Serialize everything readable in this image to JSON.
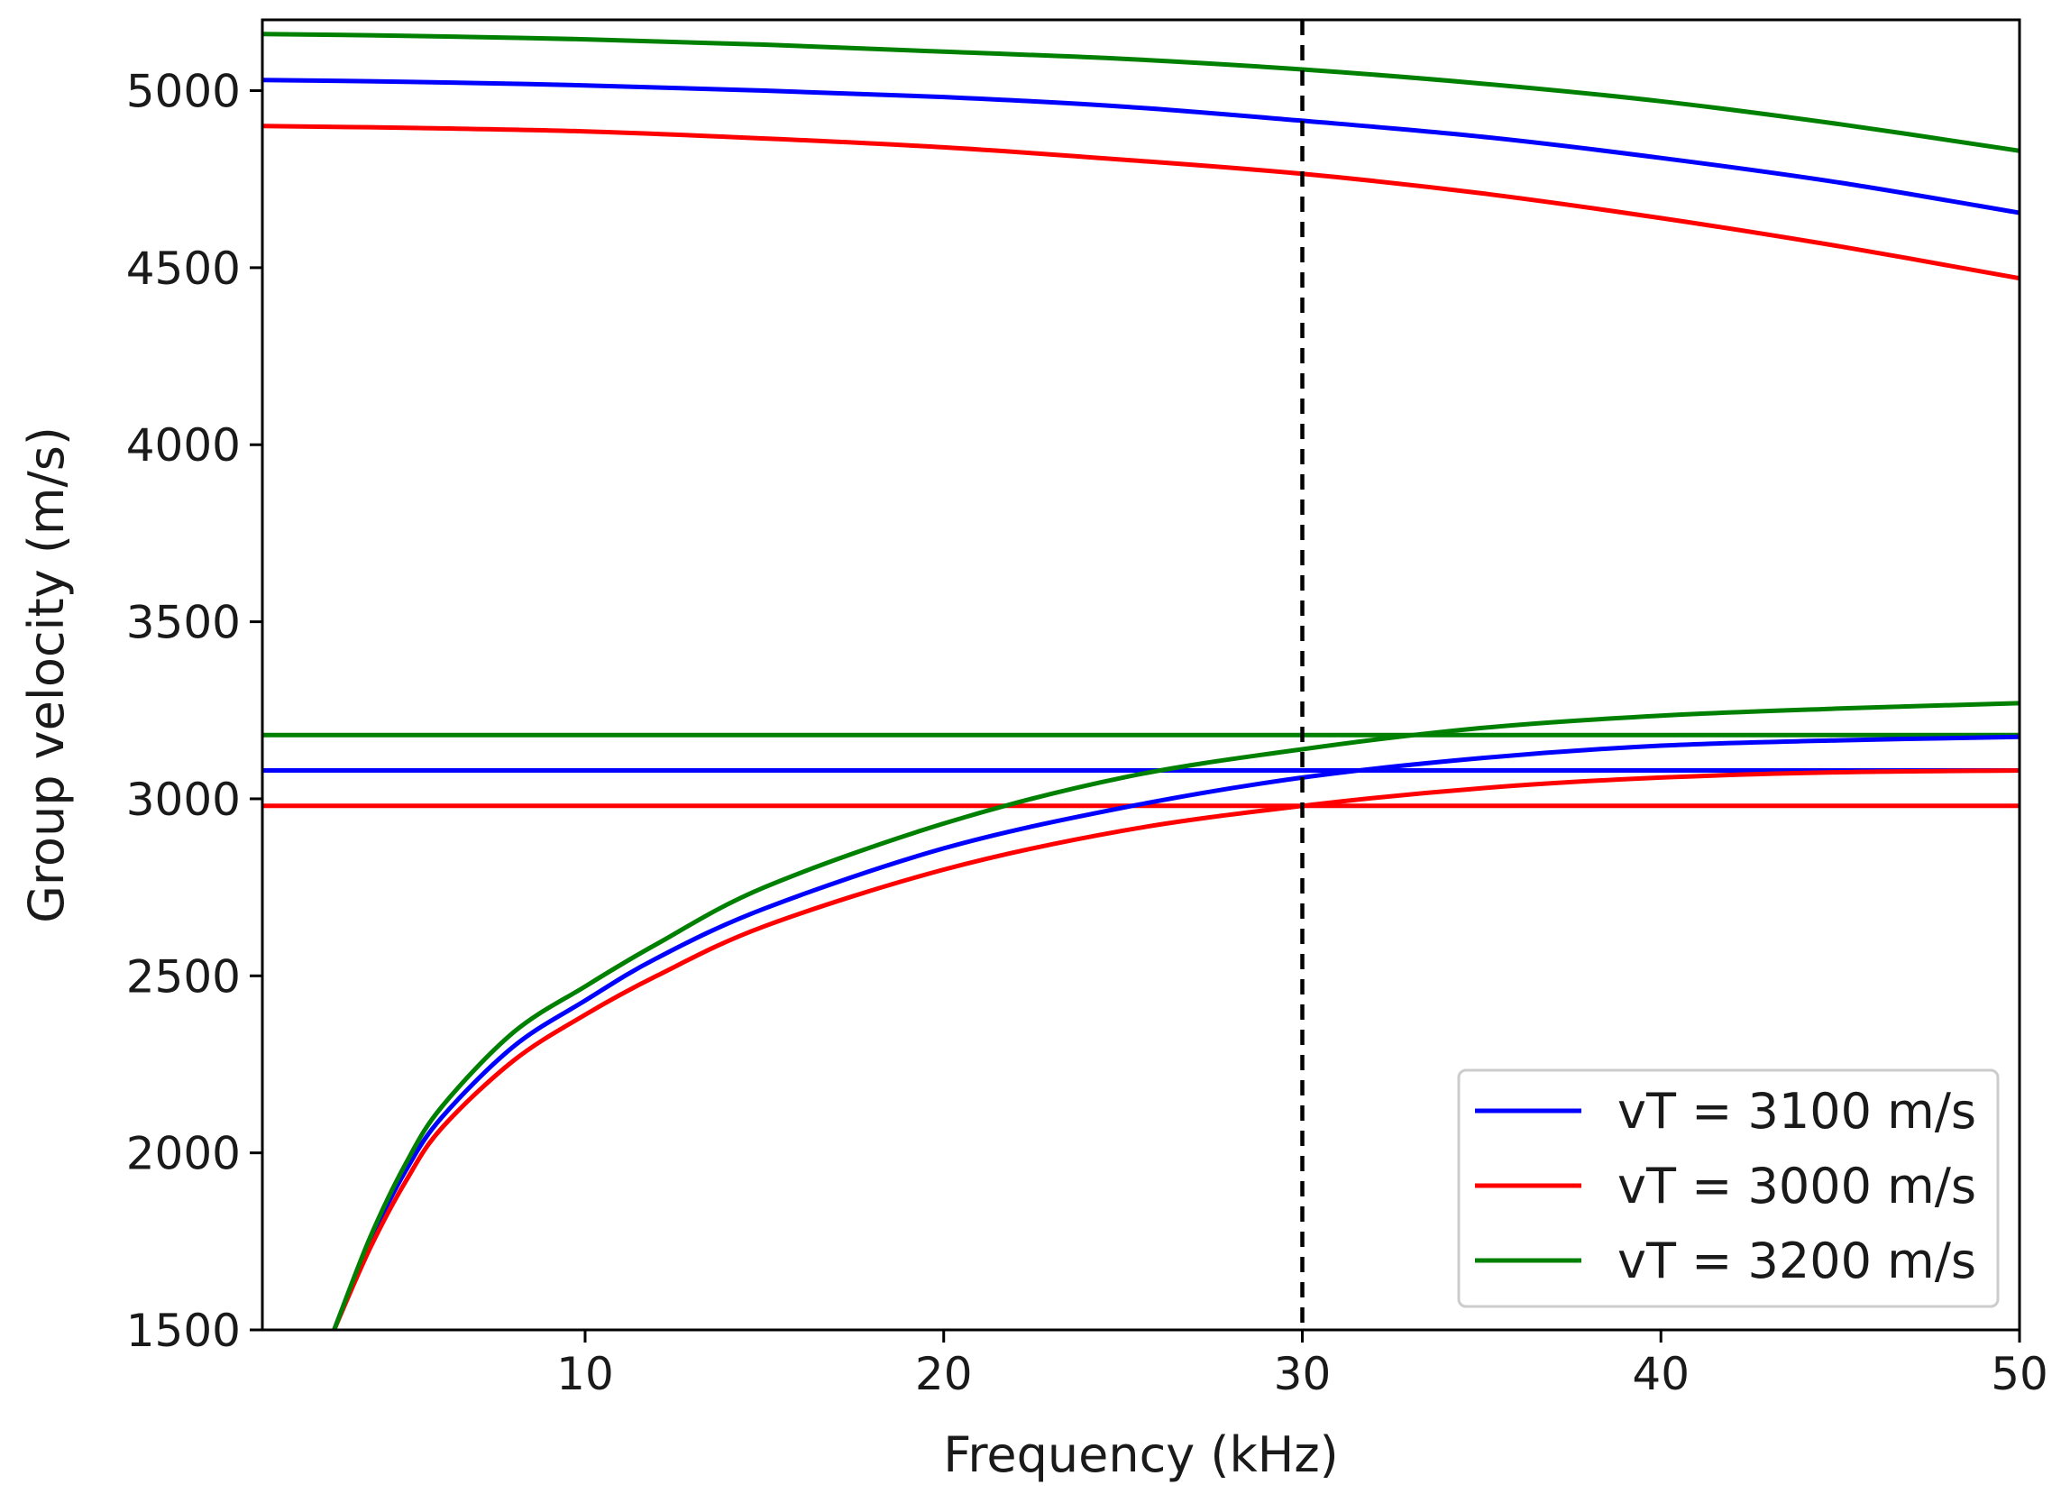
{
  "chart_data": {
    "type": "line",
    "title": "",
    "xlabel": "Frequency (kHz)",
    "ylabel": "Group velocity (m/s)",
    "xlim": [
      1,
      50
    ],
    "ylim": [
      1500,
      5200
    ],
    "xticks": [
      10,
      20,
      30,
      40,
      50
    ],
    "yticks": [
      1500,
      2000,
      2500,
      3000,
      3500,
      4000,
      4500,
      5000
    ],
    "grid": false,
    "legend_position": "lower-right",
    "vertical_reference": {
      "x": 30,
      "style": "dashed",
      "color": "#000000"
    },
    "series": [
      {
        "name": "vT = 3100 m/s",
        "color": "#0000ff",
        "x": [
          1,
          5,
          10,
          15,
          20,
          25,
          30,
          35,
          40,
          45,
          50
        ],
        "upper_mode": [
          5030,
          5025,
          5015,
          5000,
          4982,
          4955,
          4915,
          4870,
          4810,
          4740,
          4655
        ],
        "lower_mode_x": [
          3,
          4,
          5,
          6,
          8,
          10,
          12,
          15,
          20,
          25,
          30,
          35,
          40,
          45,
          50
        ],
        "lower_mode": [
          1500,
          1750,
          1950,
          2100,
          2300,
          2430,
          2550,
          2690,
          2860,
          2975,
          3060,
          3115,
          3150,
          3165,
          3175
        ],
        "asymptote": 3080
      },
      {
        "name": "vT = 3000 m/s",
        "color": "#ff0000",
        "x": [
          1,
          5,
          10,
          15,
          20,
          25,
          30,
          35,
          40,
          45,
          50
        ],
        "upper_mode": [
          4900,
          4895,
          4885,
          4865,
          4840,
          4805,
          4765,
          4710,
          4640,
          4560,
          4470
        ],
        "lower_mode_x": [
          3,
          4,
          5,
          6,
          8,
          10,
          12,
          15,
          20,
          25,
          30,
          35,
          40,
          45,
          50
        ],
        "lower_mode": [
          1500,
          1730,
          1920,
          2070,
          2260,
          2390,
          2500,
          2640,
          2800,
          2910,
          2980,
          3030,
          3060,
          3075,
          3080
        ],
        "asymptote": 2980
      },
      {
        "name": "vT = 3200 m/s",
        "color": "#008000",
        "x": [
          1,
          5,
          10,
          15,
          20,
          25,
          30,
          35,
          40,
          45,
          50
        ],
        "upper_mode": [
          5160,
          5155,
          5145,
          5130,
          5110,
          5090,
          5060,
          5020,
          4970,
          4905,
          4830
        ],
        "lower_mode_x": [
          3,
          4,
          5,
          6,
          8,
          10,
          12,
          15,
          20,
          25,
          30,
          35,
          40,
          45,
          50
        ],
        "lower_mode": [
          1500,
          1760,
          1970,
          2130,
          2340,
          2470,
          2590,
          2750,
          2930,
          3060,
          3140,
          3200,
          3235,
          3255,
          3270
        ],
        "asymptote": 3180
      }
    ]
  }
}
